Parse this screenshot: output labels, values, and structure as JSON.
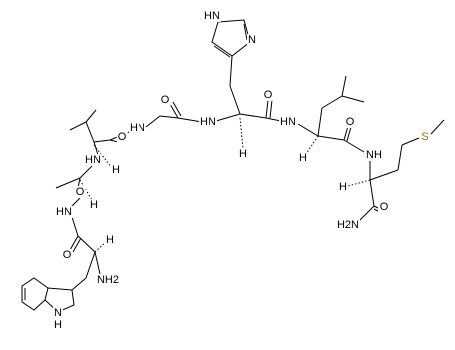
{
  "atoms": [
    "HN",
    "N",
    "O",
    "O",
    "O",
    "N",
    "H",
    "N",
    "H",
    "N",
    "H",
    "O",
    "S",
    "N",
    "H",
    "H",
    "H",
    "N",
    "H",
    "H",
    "O",
    "H",
    "N",
    "H",
    "H",
    "O",
    "O",
    "NH2",
    "H2N",
    "N",
    "H",
    "H"
  ]
}
